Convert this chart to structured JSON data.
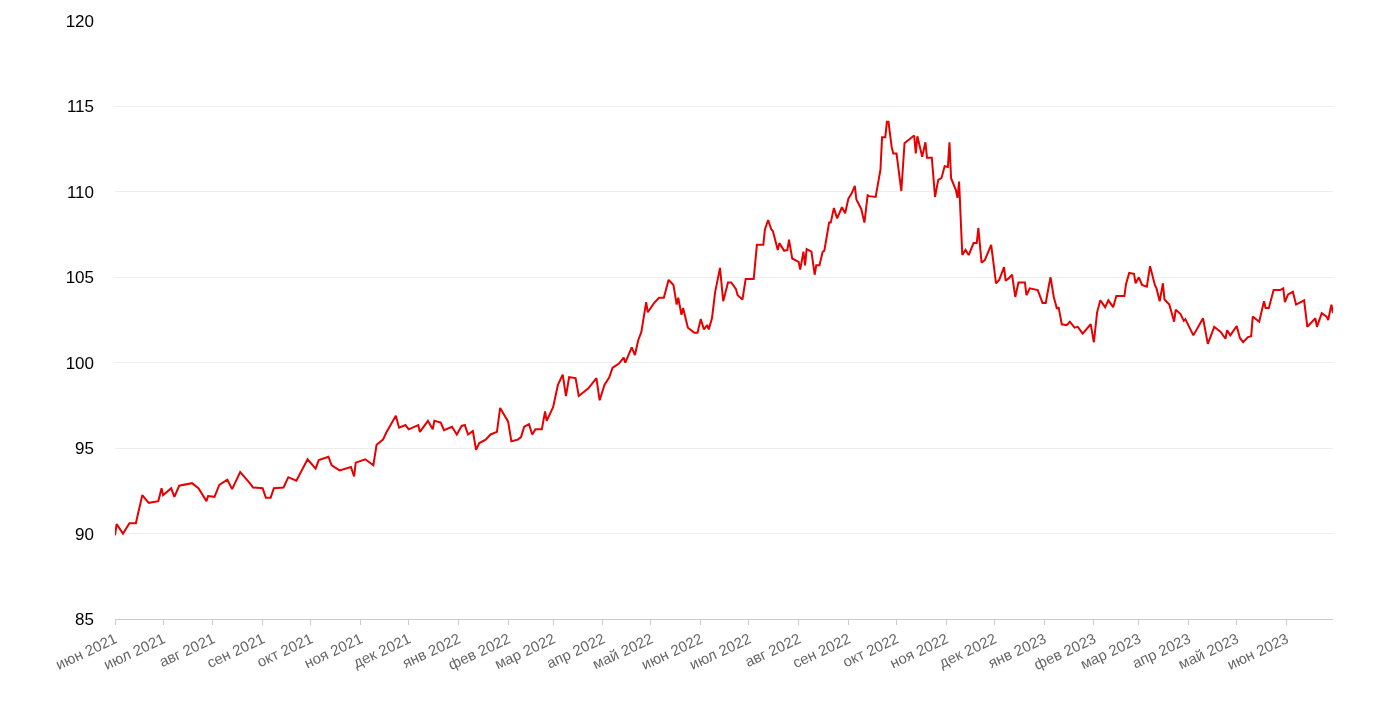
{
  "chart_data": {
    "type": "line",
    "x": [
      "2021-06-01",
      "2021-06-02",
      "2021-06-06",
      "2021-06-10",
      "2021-06-14",
      "2021-06-18",
      "2021-06-22",
      "2021-06-28",
      "2021-06-30",
      "2021-07-01",
      "2021-07-06",
      "2021-07-08",
      "2021-07-11",
      "2021-07-19",
      "2021-07-23",
      "2021-07-28",
      "2021-07-29",
      "2021-08-02",
      "2021-08-05",
      "2021-08-10",
      "2021-08-13",
      "2021-08-18",
      "2021-08-24",
      "2021-08-26",
      "2021-09-01",
      "2021-09-03",
      "2021-09-06",
      "2021-09-08",
      "2021-09-14",
      "2021-09-17",
      "2021-09-22",
      "2021-09-29",
      "2021-10-04",
      "2021-10-06",
      "2021-10-12",
      "2021-10-14",
      "2021-10-19",
      "2021-10-26",
      "2021-10-28",
      "2021-10-29",
      "2021-11-04",
      "2021-11-09",
      "2021-11-11",
      "2021-11-15",
      "2021-11-17",
      "2021-11-23",
      "2021-11-25",
      "2021-11-29",
      "2021-12-01",
      "2021-12-07",
      "2021-12-08",
      "2021-12-13",
      "2021-12-16",
      "2021-12-17",
      "2021-12-21",
      "2021-12-23",
      "2021-12-28",
      "2021-12-31",
      "2022-01-03",
      "2022-01-05",
      "2022-01-07",
      "2022-01-10",
      "2022-01-12",
      "2022-01-14",
      "2022-01-18",
      "2022-01-21",
      "2022-01-25",
      "2022-01-27",
      "2022-02-01",
      "2022-02-03",
      "2022-02-07",
      "2022-02-09",
      "2022-02-11",
      "2022-02-14",
      "2022-02-16",
      "2022-02-18",
      "2022-02-22",
      "2022-02-24",
      "2022-02-25",
      "2022-03-01",
      "2022-03-04",
      "2022-03-07",
      "2022-03-09",
      "2022-03-11",
      "2022-03-15",
      "2022-03-17",
      "2022-03-23",
      "2022-03-28",
      "2022-03-30",
      "2022-04-02",
      "2022-04-05",
      "2022-04-07",
      "2022-04-11",
      "2022-04-14",
      "2022-04-15",
      "2022-04-19",
      "2022-04-21",
      "2022-04-23",
      "2022-04-25",
      "2022-04-28",
      "2022-04-29",
      "2022-05-03",
      "2022-05-06",
      "2022-05-09",
      "2022-05-12",
      "2022-05-15",
      "2022-05-17",
      "2022-05-18",
      "2022-05-20",
      "2022-05-21",
      "2022-05-24",
      "2022-05-28",
      "2022-05-30",
      "2022-06-01",
      "2022-06-03",
      "2022-06-05",
      "2022-06-06",
      "2022-06-08",
      "2022-06-10",
      "2022-06-13",
      "2022-06-15",
      "2022-06-18",
      "2022-06-20",
      "2022-06-23",
      "2022-06-24",
      "2022-06-27",
      "2022-06-29",
      "2022-07-04",
      "2022-07-06",
      "2022-07-10",
      "2022-07-11",
      "2022-07-13",
      "2022-07-15",
      "2022-07-16",
      "2022-07-19",
      "2022-07-20",
      "2022-07-23",
      "2022-07-25",
      "2022-07-26",
      "2022-07-28",
      "2022-08-01",
      "2022-08-02",
      "2022-08-04",
      "2022-08-05",
      "2022-08-06",
      "2022-08-09",
      "2022-08-11",
      "2022-08-12",
      "2022-08-14",
      "2022-08-16",
      "2022-08-17",
      "2022-08-20",
      "2022-08-21",
      "2022-08-23",
      "2022-08-25",
      "2022-08-28",
      "2022-08-30",
      "2022-09-01",
      "2022-09-03",
      "2022-09-05",
      "2022-09-06",
      "2022-09-09",
      "2022-09-11",
      "2022-09-13",
      "2022-09-14",
      "2022-09-18",
      "2022-09-21",
      "2022-09-22",
      "2022-09-24",
      "2022-09-25",
      "2022-09-26",
      "2022-09-28",
      "2022-09-29",
      "2022-10-01",
      "2022-10-04",
      "2022-10-06",
      "2022-10-10",
      "2022-10-12",
      "2022-10-13",
      "2022-10-14",
      "2022-10-17",
      "2022-10-19",
      "2022-10-20",
      "2022-10-23",
      "2022-10-25",
      "2022-10-27",
      "2022-10-29",
      "2022-10-31",
      "2022-11-02",
      "2022-11-03",
      "2022-11-04",
      "2022-11-07",
      "2022-11-08",
      "2022-11-09",
      "2022-11-11",
      "2022-11-13",
      "2022-11-15",
      "2022-11-18",
      "2022-11-20",
      "2022-11-21",
      "2022-11-23",
      "2022-11-25",
      "2022-11-29",
      "2022-12-02",
      "2022-12-04",
      "2022-12-07",
      "2022-12-08",
      "2022-12-10",
      "2022-12-12",
      "2022-12-14",
      "2022-12-16",
      "2022-12-20",
      "2022-12-21",
      "2022-12-23",
      "2022-12-28",
      "2022-12-31",
      "2023-01-02",
      "2023-01-04",
      "2023-01-05",
      "2023-01-07",
      "2023-01-09",
      "2023-01-10",
      "2023-01-12",
      "2023-01-15",
      "2023-01-17",
      "2023-01-20",
      "2023-01-22",
      "2023-01-25",
      "2023-01-30",
      "2023-02-01",
      "2023-02-03",
      "2023-02-05",
      "2023-02-08",
      "2023-02-10",
      "2023-02-13",
      "2023-02-15",
      "2023-02-20",
      "2023-02-21",
      "2023-02-23",
      "2023-02-26",
      "2023-02-27",
      "2023-03-01",
      "2023-03-03",
      "2023-03-06",
      "2023-03-08",
      "2023-03-11",
      "2023-03-12",
      "2023-03-14",
      "2023-03-16",
      "2023-03-17",
      "2023-03-20",
      "2023-03-23",
      "2023-03-24",
      "2023-03-27",
      "2023-03-29",
      "2023-03-30",
      "2023-04-04",
      "2023-04-10",
      "2023-04-13",
      "2023-04-17",
      "2023-04-21",
      "2023-04-24",
      "2023-04-25",
      "2023-04-27",
      "2023-05-01",
      "2023-05-03",
      "2023-05-05",
      "2023-05-08",
      "2023-05-10",
      "2023-05-11",
      "2023-05-15",
      "2023-05-18",
      "2023-05-19",
      "2023-05-21",
      "2023-05-24",
      "2023-05-28",
      "2023-05-30",
      "2023-05-31",
      "2023-06-02",
      "2023-06-05",
      "2023-06-07",
      "2023-06-12",
      "2023-06-14",
      "2023-06-19",
      "2023-06-20",
      "2023-06-23",
      "2023-06-26",
      "2023-06-27",
      "2023-06-29",
      "2023-06-30"
    ],
    "series": [
      {
        "color": "#e60000",
        "values": [
          89.9,
          90.55,
          90.0,
          90.6,
          90.6,
          92.25,
          91.8,
          91.9,
          92.65,
          92.25,
          92.65,
          92.15,
          92.8,
          92.95,
          92.65,
          91.9,
          92.2,
          92.15,
          92.85,
          93.15,
          92.6,
          93.6,
          92.95,
          92.7,
          92.65,
          92.1,
          92.1,
          92.65,
          92.7,
          93.3,
          93.1,
          94.35,
          93.8,
          94.3,
          94.5,
          94.0,
          93.7,
          93.9,
          93.35,
          94.15,
          94.35,
          94.0,
          95.2,
          95.5,
          95.9,
          96.9,
          96.2,
          96.35,
          96.1,
          96.35,
          95.95,
          96.6,
          96.1,
          96.6,
          96.5,
          96.05,
          96.25,
          95.8,
          96.3,
          96.35,
          95.8,
          96.0,
          94.9,
          95.3,
          95.5,
          95.8,
          95.95,
          97.35,
          96.55,
          95.4,
          95.5,
          95.65,
          96.25,
          96.4,
          95.8,
          96.1,
          96.1,
          97.15,
          96.6,
          97.4,
          98.7,
          99.3,
          98.05,
          99.15,
          99.1,
          98.05,
          98.5,
          99.1,
          97.8,
          98.7,
          99.15,
          99.7,
          99.95,
          100.3,
          100.0,
          100.9,
          100.45,
          101.3,
          101.8,
          103.55,
          102.95,
          103.5,
          103.8,
          103.8,
          104.85,
          104.55,
          103.4,
          103.8,
          102.8,
          103.2,
          102.05,
          101.75,
          101.75,
          102.55,
          101.95,
          102.2,
          101.95,
          102.6,
          104.15,
          105.55,
          103.6,
          104.7,
          104.7,
          104.3,
          103.95,
          103.7,
          104.9,
          104.9,
          106.9,
          106.9,
          107.8,
          108.35,
          107.8,
          107.7,
          106.6,
          107.0,
          106.55,
          106.6,
          107.2,
          106.1,
          105.9,
          105.45,
          106.5,
          105.7,
          106.65,
          106.5,
          105.15,
          105.7,
          105.7,
          106.5,
          106.55,
          108.2,
          108.2,
          109.05,
          108.45,
          109.1,
          108.75,
          109.6,
          109.9,
          110.35,
          109.55,
          109.0,
          108.2,
          109.8,
          109.75,
          109.7,
          111.3,
          113.2,
          113.2,
          114.1,
          114.1,
          112.6,
          112.25,
          112.25,
          110.05,
          112.85,
          113.15,
          113.3,
          112.25,
          113.25,
          112.05,
          112.9,
          112.0,
          112.0,
          109.7,
          110.7,
          110.8,
          111.5,
          111.45,
          112.9,
          110.8,
          110.1,
          109.65,
          110.6,
          106.3,
          106.6,
          106.3,
          107.0,
          107.0,
          107.9,
          105.85,
          106.0,
          106.9,
          104.65,
          104.85,
          105.6,
          104.8,
          104.95,
          105.15,
          103.85,
          104.7,
          104.7,
          103.95,
          104.35,
          104.25,
          103.5,
          103.5,
          104.55,
          105.0,
          103.85,
          103.15,
          103.25,
          102.25,
          102.2,
          102.4,
          102.05,
          102.1,
          101.7,
          102.25,
          101.2,
          102.95,
          103.65,
          103.25,
          103.65,
          103.25,
          103.9,
          103.9,
          104.6,
          105.25,
          105.2,
          104.65,
          105.0,
          104.55,
          104.45,
          105.65,
          104.55,
          104.35,
          103.6,
          104.65,
          103.7,
          103.4,
          102.4,
          103.1,
          102.85,
          102.45,
          102.55,
          101.6,
          102.6,
          101.1,
          102.1,
          101.8,
          101.4,
          101.9,
          101.6,
          102.15,
          101.45,
          101.2,
          101.5,
          101.55,
          102.7,
          102.4,
          103.6,
          103.2,
          103.2,
          104.25,
          104.25,
          104.35,
          103.55,
          104.0,
          104.15,
          103.4,
          103.65,
          102.1,
          102.6,
          102.1,
          102.9,
          102.7,
          102.5,
          103.4,
          102.9
        ]
      }
    ],
    "xlim": [
      "2021-06-01",
      "2023-06-30"
    ],
    "xticks": [
      {
        "value": "2021-06-01",
        "label": "июн 2021"
      },
      {
        "value": "2021-07-01",
        "label": "июл 2021"
      },
      {
        "value": "2021-08-01",
        "label": "авг 2021"
      },
      {
        "value": "2021-09-01",
        "label": "сен 2021"
      },
      {
        "value": "2021-10-01",
        "label": "окт 2021"
      },
      {
        "value": "2021-11-01",
        "label": "ноя 2021"
      },
      {
        "value": "2021-12-01",
        "label": "дек 2021"
      },
      {
        "value": "2022-01-01",
        "label": "янв 2022"
      },
      {
        "value": "2022-02-01",
        "label": "фев 2022"
      },
      {
        "value": "2022-03-01",
        "label": "мар 2022"
      },
      {
        "value": "2022-04-01",
        "label": "апр 2022"
      },
      {
        "value": "2022-05-01",
        "label": "май 2022"
      },
      {
        "value": "2022-06-01",
        "label": "июн 2022"
      },
      {
        "value": "2022-07-01",
        "label": "июл 2022"
      },
      {
        "value": "2022-08-01",
        "label": "авг 2022"
      },
      {
        "value": "2022-09-01",
        "label": "сен 2022"
      },
      {
        "value": "2022-10-01",
        "label": "окт 2022"
      },
      {
        "value": "2022-11-01",
        "label": "ноя 2022"
      },
      {
        "value": "2022-12-01",
        "label": "дек 2022"
      },
      {
        "value": "2023-01-01",
        "label": "янв 2023"
      },
      {
        "value": "2023-02-01",
        "label": "фев 2023"
      },
      {
        "value": "2023-03-01",
        "label": "мар 2023"
      },
      {
        "value": "2023-04-01",
        "label": "апр 2023"
      },
      {
        "value": "2023-05-01",
        "label": "май 2023"
      },
      {
        "value": "2023-06-01",
        "label": "июн 2023"
      }
    ],
    "ylim": [
      85,
      120
    ],
    "yticks": [
      85,
      90,
      95,
      100,
      105,
      110,
      115,
      120
    ],
    "grid": "y",
    "line_style": "solid",
    "marker": "none"
  }
}
